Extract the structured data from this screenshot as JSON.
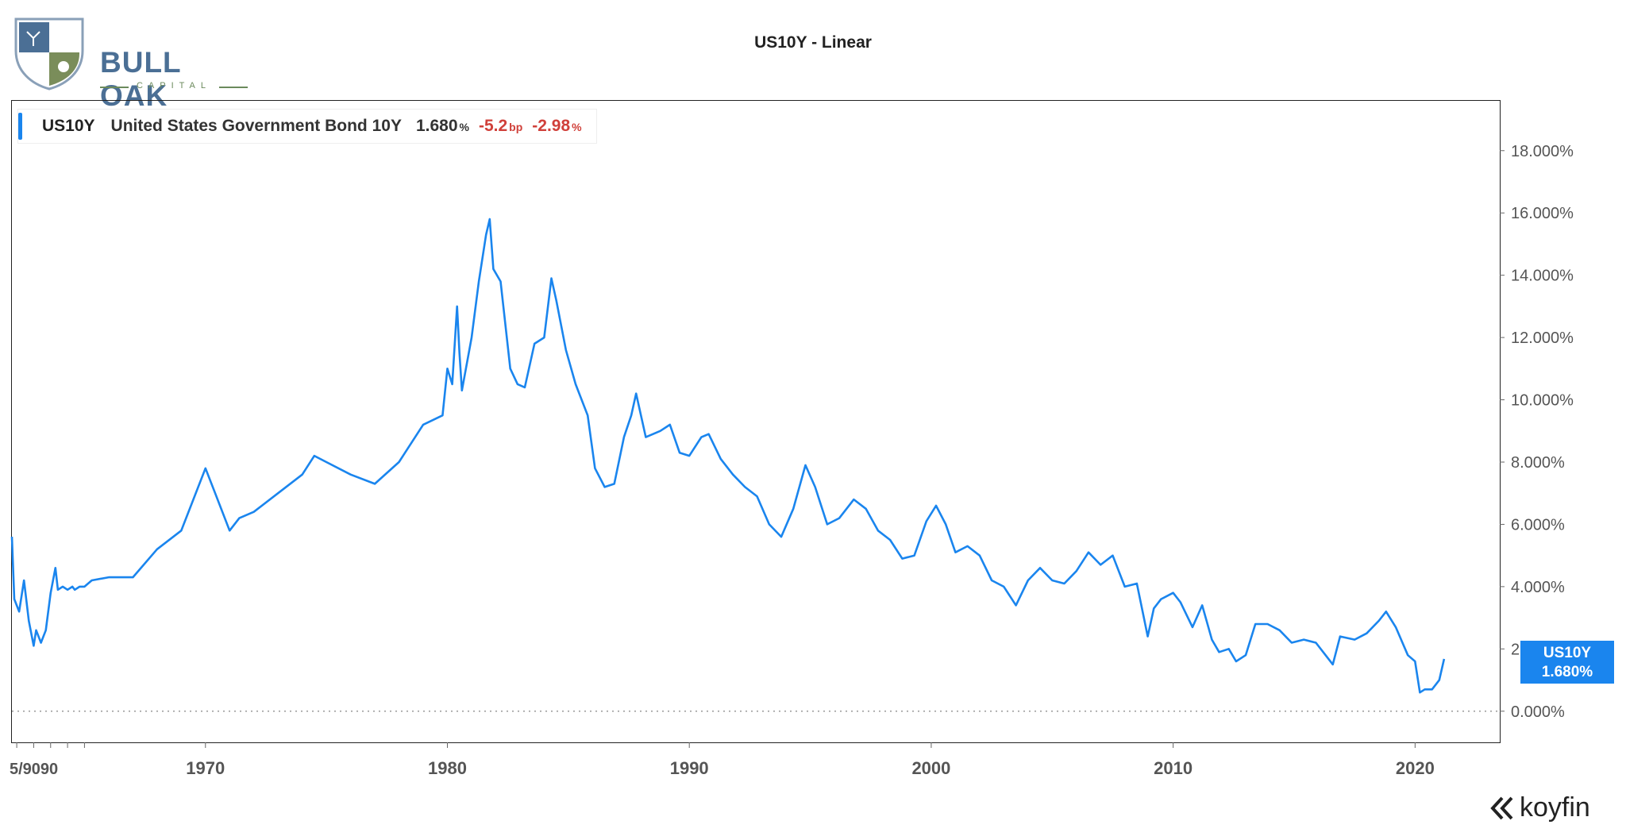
{
  "header": {
    "logo_text": "BULL OAK",
    "logo_sub": "CAPITAL",
    "title": "US10Y - Linear"
  },
  "legend": {
    "symbol": "US10Y",
    "name": "United States Government Bond 10Y",
    "value": "1.680",
    "value_unit": "%",
    "change_bp": "-5.2",
    "change_bp_unit": "bp",
    "change_pct": "-2.98",
    "change_pct_unit": "%"
  },
  "price_tag": {
    "symbol": "US10Y",
    "value": "1.680%"
  },
  "brand": {
    "name": "koyfin"
  },
  "colors": {
    "line": "#1a85ee",
    "negative": "#d0403a",
    "axis_text": "#555555"
  },
  "chart_data": {
    "type": "line",
    "title": "US10Y - Linear",
    "xlabel": "",
    "ylabel": "",
    "x_unit": "year",
    "xlim": [
      1962,
      2023.5
    ],
    "ylim": [
      -1.0,
      19.6
    ],
    "y_ticks": [
      0,
      2,
      4,
      6,
      8,
      10,
      12,
      14,
      16,
      18
    ],
    "y_tick_labels": [
      "0.000%",
      "2.000%",
      "4.000%",
      "6.000%",
      "8.000%",
      "10.000%",
      "12.000%",
      "14.000%",
      "16.000%",
      "18.000%"
    ],
    "x_ticks": [
      1970,
      1980,
      1990,
      2000,
      2010,
      2020
    ],
    "x_tick_labels": [
      "1970",
      "1980",
      "1990",
      "2000",
      "2010",
      "2020"
    ],
    "x_left_cluster_label": "5/9090",
    "zero_line": true,
    "grid": false,
    "legend_position": "top-left",
    "series": [
      {
        "name": "US10Y",
        "x": [
          1962.0,
          1962.1,
          1962.3,
          1962.5,
          1962.7,
          1962.9,
          1963.0,
          1963.2,
          1963.4,
          1963.6,
          1963.8,
          1963.9,
          1964.1,
          1964.3,
          1964.5,
          1964.6,
          1964.8,
          1965.0,
          1965.3,
          1966.0,
          1967.0,
          1968.0,
          1969.0,
          1970.0,
          1970.4,
          1971.0,
          1971.4,
          1972.0,
          1973.0,
          1974.0,
          1974.5,
          1975.0,
          1976.0,
          1977.0,
          1978.0,
          1979.0,
          1979.8,
          1980.0,
          1980.2,
          1980.4,
          1980.5,
          1980.6,
          1981.0,
          1981.3,
          1981.6,
          1981.75,
          1981.9,
          1982.2,
          1982.6,
          1982.9,
          1983.2,
          1983.6,
          1984.0,
          1984.3,
          1984.5,
          1984.9,
          1985.3,
          1985.8,
          1986.1,
          1986.5,
          1986.9,
          1987.3,
          1987.6,
          1987.8,
          1988.2,
          1988.8,
          1989.2,
          1989.6,
          1990.0,
          1990.5,
          1990.8,
          1991.3,
          1991.8,
          1992.3,
          1992.8,
          1993.3,
          1993.8,
          1994.3,
          1994.8,
          1995.2,
          1995.7,
          1996.2,
          1996.8,
          1997.3,
          1997.8,
          1998.3,
          1998.8,
          1999.3,
          1999.8,
          2000.2,
          2000.6,
          2001.0,
          2001.5,
          2002.0,
          2002.5,
          2003.0,
          2003.5,
          2004.0,
          2004.5,
          2005.0,
          2005.5,
          2006.0,
          2006.5,
          2007.0,
          2007.5,
          2008.0,
          2008.5,
          2008.95,
          2009.2,
          2009.5,
          2010.0,
          2010.3,
          2010.8,
          2011.2,
          2011.6,
          2011.9,
          2012.3,
          2012.6,
          2013.0,
          2013.4,
          2013.9,
          2014.4,
          2014.9,
          2015.4,
          2015.9,
          2016.3,
          2016.6,
          2016.9,
          2017.5,
          2018.0,
          2018.5,
          2018.8,
          2019.2,
          2019.7,
          2020.0,
          2020.2,
          2020.4,
          2020.7,
          2021.0,
          2021.2
        ],
        "y": [
          5.6,
          3.6,
          3.2,
          4.2,
          2.9,
          2.1,
          2.6,
          2.2,
          2.6,
          3.8,
          4.6,
          3.9,
          4.0,
          3.9,
          4.0,
          3.9,
          4.0,
          4.0,
          4.2,
          4.3,
          4.3,
          5.2,
          5.8,
          7.8,
          7.0,
          5.8,
          6.2,
          6.4,
          7.0,
          7.6,
          8.2,
          8.0,
          7.6,
          7.3,
          8.0,
          9.2,
          9.5,
          11.0,
          10.5,
          13.0,
          11.5,
          10.3,
          12.0,
          13.8,
          15.3,
          15.8,
          14.2,
          13.8,
          11.0,
          10.5,
          10.4,
          11.8,
          12.0,
          13.9,
          13.2,
          11.6,
          10.5,
          9.5,
          7.8,
          7.2,
          7.3,
          8.8,
          9.5,
          10.2,
          8.8,
          9.0,
          9.2,
          8.3,
          8.2,
          8.8,
          8.9,
          8.1,
          7.6,
          7.2,
          6.9,
          6.0,
          5.6,
          6.5,
          7.9,
          7.2,
          6.0,
          6.2,
          6.8,
          6.5,
          5.8,
          5.5,
          4.9,
          5.0,
          6.1,
          6.6,
          6.0,
          5.1,
          5.3,
          5.0,
          4.2,
          4.0,
          3.4,
          4.2,
          4.6,
          4.2,
          4.1,
          4.5,
          5.1,
          4.7,
          5.0,
          4.0,
          4.1,
          2.4,
          3.3,
          3.6,
          3.8,
          3.5,
          2.7,
          3.4,
          2.3,
          1.9,
          2.0,
          1.6,
          1.8,
          2.8,
          2.8,
          2.6,
          2.2,
          2.3,
          2.2,
          1.8,
          1.5,
          2.4,
          2.3,
          2.5,
          2.9,
          3.2,
          2.7,
          1.8,
          1.6,
          0.6,
          0.7,
          0.7,
          1.0,
          1.68
        ]
      }
    ]
  }
}
